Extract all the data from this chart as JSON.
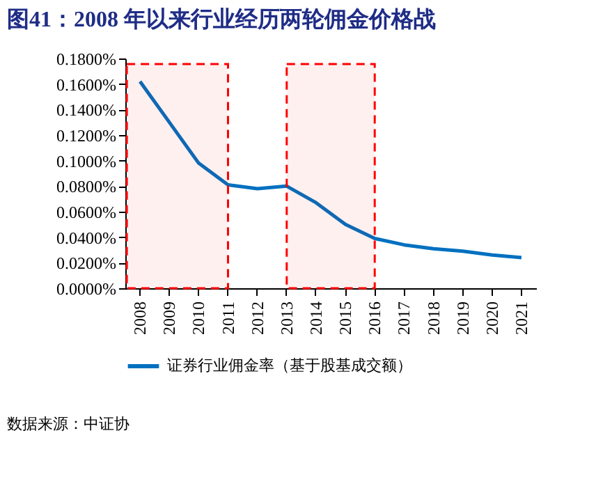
{
  "chart_data": {
    "type": "line",
    "title": "图41：2008 年以来行业经历两轮佣金价格战",
    "categories": [
      "2008",
      "2009",
      "2010",
      "2011",
      "2012",
      "2013",
      "2014",
      "2015",
      "2016",
      "2017",
      "2018",
      "2019",
      "2020",
      "2021"
    ],
    "series": [
      {
        "name": "证券行业佣金率（基于股基成交额）",
        "color": "#0070c0",
        "values": [
          0.162,
          0.13,
          0.098,
          0.081,
          0.078,
          0.08,
          0.067,
          0.05,
          0.039,
          0.034,
          0.031,
          0.029,
          0.026,
          0.024
        ]
      }
    ],
    "ylim": [
      0,
      0.18
    ],
    "yticks": [
      {
        "value": 0,
        "label": "0.0000%"
      },
      {
        "value": 0.02,
        "label": "0.0200%"
      },
      {
        "value": 0.04,
        "label": "0.0400%"
      },
      {
        "value": 0.06,
        "label": "0.0600%"
      },
      {
        "value": 0.08,
        "label": "0.0800%"
      },
      {
        "value": 0.1,
        "label": "0.1000%"
      },
      {
        "value": 0.12,
        "label": "0.1200%"
      },
      {
        "value": 0.14,
        "label": "0.1400%"
      },
      {
        "value": 0.16,
        "label": "0.1600%"
      },
      {
        "value": 0.18,
        "label": "0.1800%"
      }
    ],
    "bands": [
      {
        "axis": "x",
        "from": "2008",
        "to": "2011",
        "color": "#ff0000"
      },
      {
        "axis": "x",
        "from": "2013",
        "to": "2016",
        "color": "#ff0000"
      }
    ],
    "grid": false,
    "legend": "bottom",
    "annotations": [
      "数据来源：中证协"
    ]
  }
}
